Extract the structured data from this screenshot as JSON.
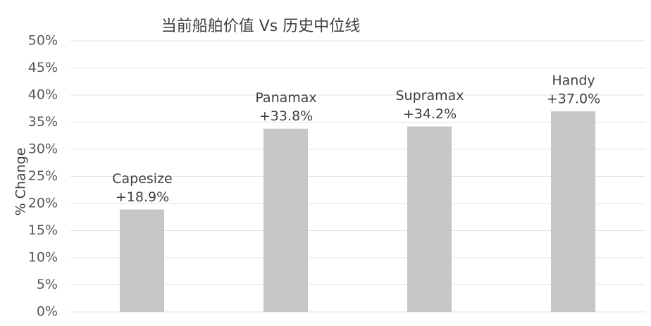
{
  "chart_data": {
    "type": "bar",
    "title": "当前船舶价值 Vs 历史中位线",
    "ylabel": "% Change",
    "categories": [
      "Capesize",
      "Panamax",
      "Supramax",
      "Handy"
    ],
    "values": [
      18.9,
      33.8,
      34.2,
      37.0
    ],
    "value_labels": [
      "+18.9%",
      "+33.8%",
      "+34.2%",
      "+37.0%"
    ],
    "color": "#c6c6c6",
    "ylim": [
      0,
      50
    ],
    "yticks": [
      {
        "value": 0,
        "label": "0%"
      },
      {
        "value": 5,
        "label": "5%"
      },
      {
        "value": 10,
        "label": "10%"
      },
      {
        "value": 15,
        "label": "15%"
      },
      {
        "value": 20,
        "label": "20%"
      },
      {
        "value": 25,
        "label": "25%"
      },
      {
        "value": 30,
        "label": "30%"
      },
      {
        "value": 35,
        "label": "35%"
      },
      {
        "value": 40,
        "label": "40%"
      },
      {
        "value": 45,
        "label": "45%"
      },
      {
        "value": 50,
        "label": "50%"
      }
    ],
    "grid": true
  }
}
